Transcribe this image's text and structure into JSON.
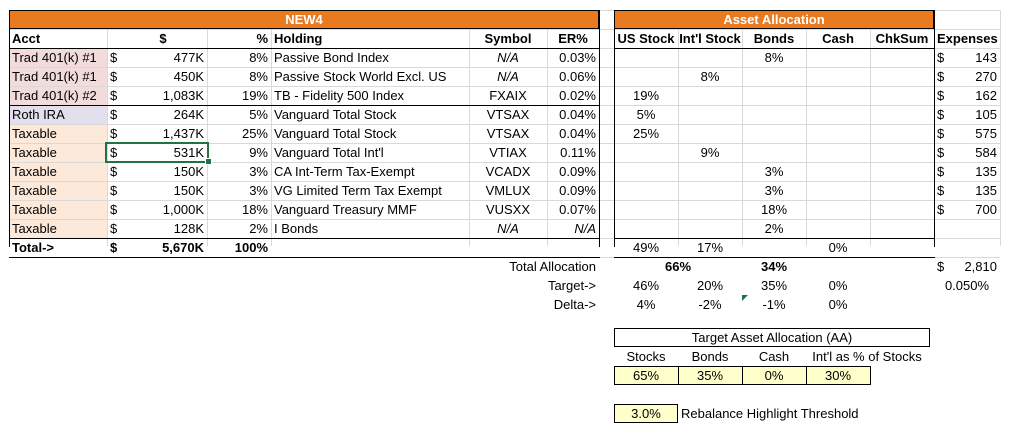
{
  "sheet": {
    "title_main": "NEW4",
    "title_aa": "Asset Allocation",
    "headers": {
      "acct": "Acct",
      "dollar": "$",
      "pct": "%",
      "holding": "Holding",
      "symbol": "Symbol",
      "er": "ER%",
      "us": "US Stock",
      "intl": "Int'l Stock",
      "bonds": "Bonds",
      "cash": "Cash",
      "chksum": "ChkSum",
      "expenses": "Expenses"
    },
    "rows": [
      {
        "acct": "Trad 401(k) #1",
        "sym": "$",
        "amt": "477K",
        "pct": "8%",
        "holding": "Passive Bond Index",
        "symbol": "N/A",
        "er": "0.03%",
        "us": "",
        "intl": "",
        "bonds": "8%",
        "cash": "",
        "exp_sym": "$",
        "exp": "143"
      },
      {
        "acct": "Trad 401(k) #1",
        "sym": "$",
        "amt": "450K",
        "pct": "8%",
        "holding": "Passive Stock World Excl. US",
        "symbol": "N/A",
        "er": "0.06%",
        "us": "",
        "intl": "8%",
        "bonds": "",
        "cash": "",
        "exp_sym": "$",
        "exp": "270"
      },
      {
        "acct": "Trad 401(k) #2",
        "sym": "$",
        "amt": "1,083K",
        "pct": "19%",
        "holding": "TB - Fidelity 500 Index",
        "symbol": "FXAIX",
        "er": "0.02%",
        "us": "19%",
        "intl": "",
        "bonds": "",
        "cash": "",
        "exp_sym": "$",
        "exp": "162"
      },
      {
        "acct": "Roth IRA",
        "sym": "$",
        "amt": "264K",
        "pct": "5%",
        "holding": "Vanguard Total Stock",
        "symbol": "VTSAX",
        "er": "0.04%",
        "us": "5%",
        "intl": "",
        "bonds": "",
        "cash": "",
        "exp_sym": "$",
        "exp": "105"
      },
      {
        "acct": "Taxable",
        "sym": "$",
        "amt": "1,437K",
        "pct": "25%",
        "holding": "Vanguard Total Stock",
        "symbol": "VTSAX",
        "er": "0.04%",
        "us": "25%",
        "intl": "",
        "bonds": "",
        "cash": "",
        "exp_sym": "$",
        "exp": "575"
      },
      {
        "acct": "Taxable",
        "sym": "$",
        "amt": "531K",
        "pct": "9%",
        "holding": "Vanguard Total Int'l",
        "symbol": "VTIAX",
        "er": "0.11%",
        "us": "",
        "intl": "9%",
        "bonds": "",
        "cash": "",
        "exp_sym": "$",
        "exp": "584"
      },
      {
        "acct": "Taxable",
        "sym": "$",
        "amt": "150K",
        "pct": "3%",
        "holding": "CA Int-Term Tax-Exempt",
        "symbol": "VCADX",
        "er": "0.09%",
        "us": "",
        "intl": "",
        "bonds": "3%",
        "cash": "",
        "exp_sym": "$",
        "exp": "135"
      },
      {
        "acct": "Taxable",
        "sym": "$",
        "amt": "150K",
        "pct": "3%",
        "holding": "VG Limited Term Tax Exempt",
        "symbol": "VMLUX",
        "er": "0.09%",
        "us": "",
        "intl": "",
        "bonds": "3%",
        "cash": "",
        "exp_sym": "$",
        "exp": "135"
      },
      {
        "acct": "Taxable",
        "sym": "$",
        "amt": "1,000K",
        "pct": "18%",
        "holding": "Vanguard Treasury MMF",
        "symbol": "VUSXX",
        "er": "0.07%",
        "us": "",
        "intl": "",
        "bonds": "18%",
        "cash": "",
        "exp_sym": "$",
        "exp": "700"
      },
      {
        "acct": "Taxable",
        "sym": "$",
        "amt": "128K",
        "pct": "2%",
        "holding": "I Bonds",
        "symbol": "N/A",
        "er": "N/A",
        "us": "",
        "intl": "",
        "bonds": "2%",
        "cash": "",
        "exp_sym": "",
        "exp": ""
      }
    ],
    "total": {
      "label": "Total->",
      "sym": "$",
      "amt": "5,670K",
      "pct": "100%",
      "us": "49%",
      "intl": "17%",
      "bonds": "",
      "cash": "0%"
    },
    "total_alloc": {
      "label": "Total Allocation",
      "stocks": "66%",
      "bonds": "34%",
      "exp_sym": "$",
      "exp": "2,810",
      "er": "0.050%"
    },
    "target": {
      "label": "Target->",
      "us": "46%",
      "intl": "20%",
      "bonds": "35%",
      "cash": "0%"
    },
    "delta": {
      "label": "Delta->",
      "us": "4%",
      "intl": "-2%",
      "bonds": "-1%",
      "cash": "0%"
    },
    "target_aa": {
      "title": "Target Asset Allocation (AA)",
      "headers": [
        "Stocks",
        "Bonds",
        "Cash",
        "Int'l as % of Stocks"
      ],
      "values": [
        "65%",
        "35%",
        "0%",
        "30%"
      ]
    },
    "rebalance": {
      "value": "3.0%",
      "label": "Rebalance Highlight Threshold"
    },
    "colors": {
      "header_orange": "#e97a20",
      "pink": "#f2dcdb",
      "lavender": "#e4dfec",
      "peach": "#fde9d9",
      "yellow": "#ffffcc",
      "selection": "#217346"
    }
  }
}
